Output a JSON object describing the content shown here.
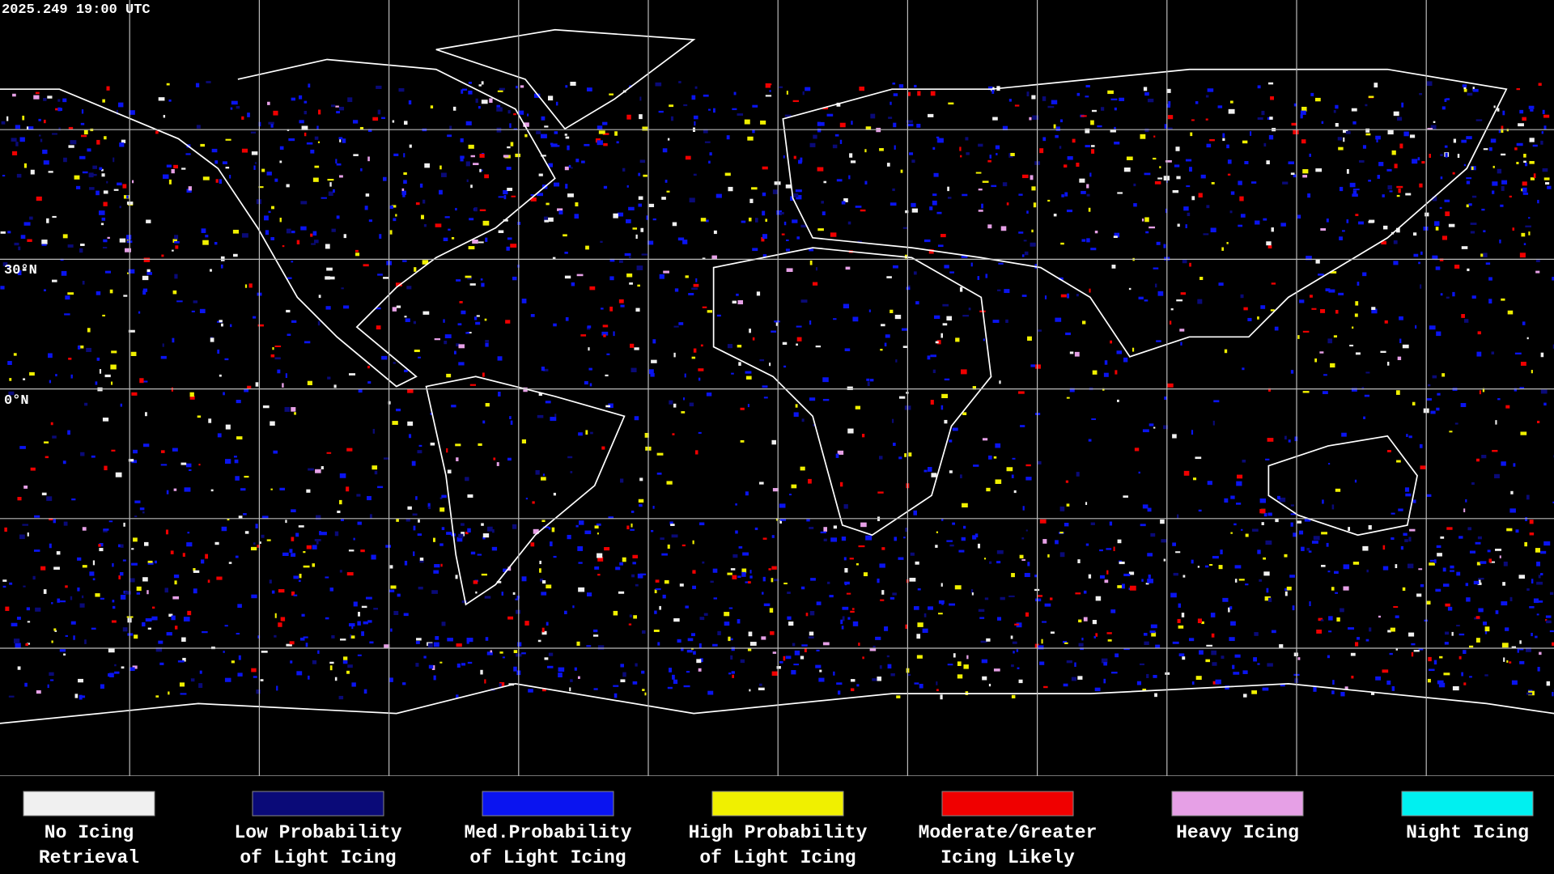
{
  "header": {
    "timestamp": "2025.249 19:00 UTC"
  },
  "latitude_labels": [
    "30°N",
    "0°N"
  ],
  "legend": [
    {
      "lines": [
        "No Icing",
        "Retrieval"
      ],
      "color": "#f0f0f0"
    },
    {
      "lines": [
        "Low Probability",
        "of Light Icing"
      ],
      "color": "#0a0a78"
    },
    {
      "lines": [
        "Med.Probability",
        "of Light Icing"
      ],
      "color": "#0a14f0"
    },
    {
      "lines": [
        "High Probability",
        "of Light Icing"
      ],
      "color": "#f0f000"
    },
    {
      "lines": [
        "Moderate/Greater",
        "Icing Likely"
      ],
      "color": "#f00000"
    },
    {
      "lines": [
        "Heavy Icing"
      ],
      "color": "#e6a0e6"
    },
    {
      "lines": [
        "Night Icing"
      ],
      "color": "#00f0f0"
    }
  ]
}
